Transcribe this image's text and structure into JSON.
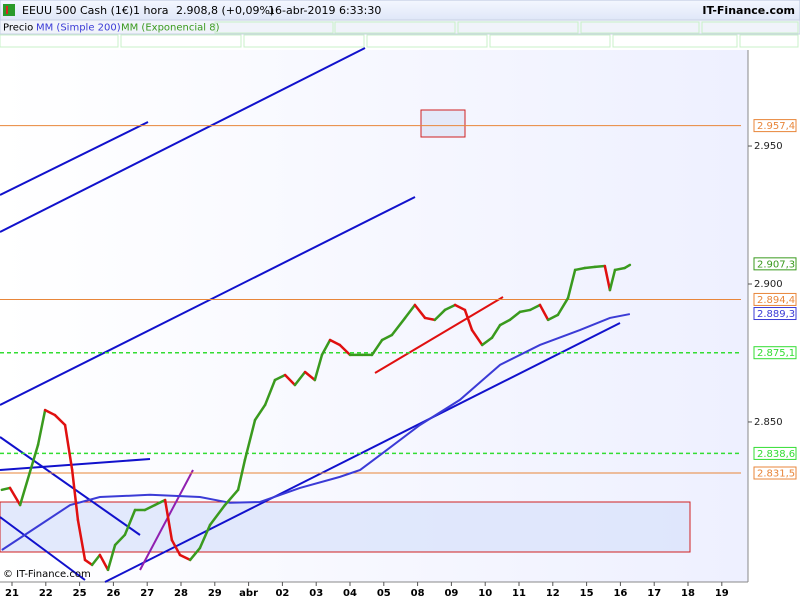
{
  "header": {
    "instrument": "EEUU 500 Cash (1€)",
    "interval": "1 hora",
    "last": "2.908,8 (+0,09%)",
    "datetime": "16-abr-2019 6:33:30",
    "site": "IT-Finance.com"
  },
  "copyright": "© IT-Finance.com",
  "chart_data": {
    "type": "line",
    "price_label": "Precio",
    "xlim": [
      -0.355,
      21.775
    ],
    "xticks": [
      {
        "value": 0,
        "label": "21"
      },
      {
        "value": 1,
        "label": "22"
      },
      {
        "value": 2,
        "label": "25"
      },
      {
        "value": 3,
        "label": "26"
      },
      {
        "value": 4,
        "label": "27"
      },
      {
        "value": 5,
        "label": "28"
      },
      {
        "value": 6,
        "label": "29"
      },
      {
        "value": 7,
        "label": "abr"
      },
      {
        "value": 8,
        "label": "02"
      },
      {
        "value": 9,
        "label": "03"
      },
      {
        "value": 10,
        "label": "04"
      },
      {
        "value": 11,
        "label": "05"
      },
      {
        "value": 12,
        "label": "08"
      },
      {
        "value": 13,
        "label": "09"
      },
      {
        "value": 14,
        "label": "10"
      },
      {
        "value": 15,
        "label": "11"
      },
      {
        "value": 16,
        "label": "12"
      },
      {
        "value": 17,
        "label": "15"
      },
      {
        "value": 18,
        "label": "16"
      },
      {
        "value": 19,
        "label": "17"
      },
      {
        "value": 20,
        "label": "18"
      },
      {
        "value": 21,
        "label": "19"
      }
    ],
    "ylim": [
      2792,
      2984.8
    ],
    "yticks": [
      {
        "value": 2850,
        "label": "2.850"
      },
      {
        "value": 2900,
        "label": "2.900"
      },
      {
        "value": 2950,
        "label": "2.950"
      }
    ],
    "series": [
      {
        "name": "MM (Simple 200)",
        "color": "#3b3bd6",
        "x": [
          -0.3,
          0.83,
          1.72,
          2.6,
          4.08,
          5.56,
          6.45,
          7.34,
          8.52,
          9.7,
          10.3,
          10.89,
          12.07,
          13.25,
          14.44,
          15.62,
          16.8,
          17.69,
          18.28
        ],
        "values": [
          2803.6,
          2812.7,
          2819.9,
          2822.8,
          2823.6,
          2822.8,
          2820.7,
          2821.0,
          2826.1,
          2830.1,
          2832.6,
          2838,
          2848.9,
          2858,
          2870.7,
          2877.9,
          2883.3,
          2887.7,
          2889.1
        ]
      },
      {
        "name": "MM (Exponencial 8)",
        "color": "#3a9a1e",
        "down_color": "#e01010",
        "x": [
          -0.3,
          -0.06,
          0.24,
          0.77,
          0.98,
          1.27,
          1.57,
          1.78,
          1.95,
          2.16,
          2.37,
          2.6,
          2.84,
          3.05,
          3.34,
          3.64,
          3.93,
          4.23,
          4.53,
          4.73,
          4.97,
          5.27,
          5.56,
          5.86,
          6.3,
          6.69,
          6.89,
          7.19,
          7.49,
          7.78,
          8.08,
          8.37,
          8.67,
          8.96,
          9.17,
          9.41,
          9.7,
          10.0,
          10.36,
          10.65,
          10.95,
          11.24,
          11.63,
          11.92,
          12.22,
          12.51,
          12.81,
          13.11,
          13.4,
          13.61,
          13.91,
          14.2,
          14.44,
          14.73,
          15.03,
          15.33,
          15.62,
          15.86,
          16.15,
          16.45,
          16.66,
          16.95,
          17.25,
          17.54,
          17.69,
          17.84,
          18.13,
          18.28
        ],
        "values": [
          2825.4,
          2826.1,
          2819.9,
          2841.7,
          2854.3,
          2852.5,
          2848.9,
          2832.6,
          2814.5,
          2800,
          2798.2,
          2801.8,
          2796.4,
          2805.4,
          2809.1,
          2818.1,
          2818.1,
          2819.9,
          2821.7,
          2807.2,
          2801.8,
          2800,
          2804.3,
          2812.7,
          2819.9,
          2825.4,
          2836.2,
          2850.7,
          2856.2,
          2865.2,
          2867.0,
          2863.4,
          2868.1,
          2865.2,
          2874.3,
          2879.7,
          2877.9,
          2874.3,
          2874.3,
          2874.3,
          2879.7,
          2881.5,
          2887.7,
          2892.4,
          2887.7,
          2887.0,
          2890.6,
          2892.4,
          2890.6,
          2883.3,
          2877.9,
          2880.5,
          2885.1,
          2887.0,
          2889.9,
          2890.6,
          2892.4,
          2887.0,
          2888.8,
          2894.9,
          2905.1,
          2905.8,
          2906.2,
          2906.5,
          2897.8,
          2905.1,
          2905.8,
          2906.9
        ]
      }
    ],
    "hlines": [
      {
        "value": 2957.4,
        "label": "2.957,4",
        "color": "#e8863a",
        "style": "solid"
      },
      {
        "value": 2894.4,
        "label": "2.894,4",
        "color": "#e8863a",
        "style": "solid"
      },
      {
        "value": 2875.1,
        "label": "2.875,1",
        "color": "#33dd33",
        "style": "dashed"
      },
      {
        "value": 2838.6,
        "label": "2.838,6",
        "color": "#33dd33",
        "style": "dashed"
      },
      {
        "value": 2831.5,
        "label": "2.831,5",
        "color": "#e8863a",
        "style": "solid"
      }
    ],
    "price_tags": [
      {
        "value": 2907.3,
        "label": "2.907,3",
        "color": "#3a9a1e"
      },
      {
        "value": 2889.3,
        "label": "2.889,3",
        "color": "#3b3bd6"
      }
    ]
  }
}
